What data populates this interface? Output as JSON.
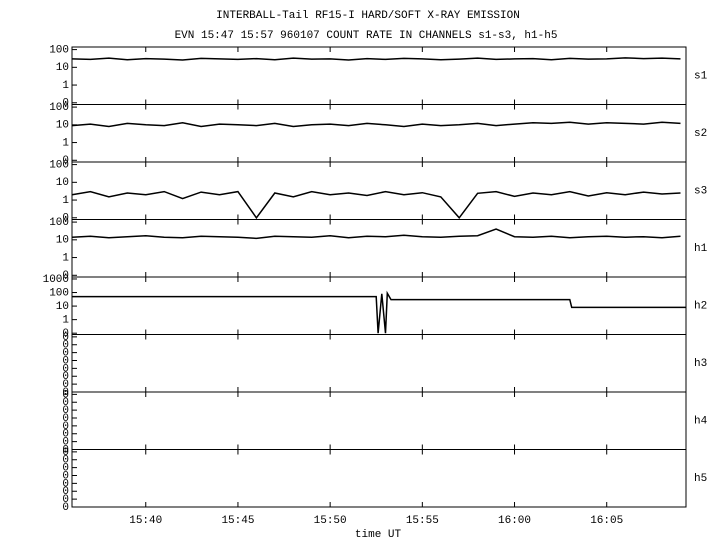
{
  "title": "INTERBALL-Tail RF15-I HARD/SOFT X-RAY EMISSION",
  "subtitle": "EVN 15:47 15:57 960107  COUNT RATE IN CHANNELS s1-s3, h1-h5",
  "xlabel": "time UT",
  "xlim": [
    936,
    969.3
  ],
  "xticks": [
    {
      "value": 940,
      "label": "15:40"
    },
    {
      "value": 945,
      "label": "15:45"
    },
    {
      "value": 950,
      "label": "15:50"
    },
    {
      "value": 955,
      "label": "15:55"
    },
    {
      "value": 960,
      "label": "16:00"
    },
    {
      "value": 965,
      "label": "16:05"
    }
  ],
  "times": [
    936,
    937,
    938,
    939,
    940,
    941,
    942,
    943,
    944,
    945,
    946,
    947,
    948,
    949,
    950,
    951,
    952,
    953,
    954,
    955,
    956,
    957,
    958,
    959,
    960,
    961,
    962,
    963,
    964,
    965,
    966,
    967,
    968,
    969
  ],
  "chart_data": [
    {
      "type": "line",
      "name": "s1",
      "log": true,
      "color": "#000000",
      "ylim": [
        0.08,
        140
      ],
      "yticks": [
        100,
        10,
        1,
        {
          "value": 0.1,
          "label": "0"
        }
      ],
      "values": [
        30,
        28,
        33,
        27,
        31,
        29,
        26,
        32,
        30,
        28,
        31,
        27,
        33,
        29,
        30,
        26,
        31,
        28,
        32,
        30,
        27,
        29,
        33,
        28,
        30,
        31,
        27,
        32,
        29,
        30,
        34,
        31,
        33,
        30
      ]
    },
    {
      "type": "line",
      "name": "s2",
      "log": true,
      "color": "#000000",
      "ylim": [
        0.08,
        140
      ],
      "yticks": [
        100,
        10,
        1,
        {
          "value": 0.1,
          "label": "0"
        }
      ],
      "values": [
        9,
        11,
        8,
        12,
        10,
        9,
        13,
        8,
        11,
        10,
        9,
        12,
        8,
        10,
        11,
        9,
        12,
        10,
        8,
        11,
        9,
        10,
        12,
        9,
        11,
        13,
        12,
        14,
        11,
        13,
        12,
        11,
        14,
        12
      ]
    },
    {
      "type": "line",
      "name": "s3",
      "log": true,
      "color": "#000000",
      "ylim": [
        0.08,
        140
      ],
      "yticks": [
        100,
        10,
        1,
        {
          "value": 0.1,
          "label": "0"
        }
      ],
      "values": [
        2,
        3,
        1.5,
        2.5,
        2,
        3,
        1.2,
        2.8,
        2,
        3,
        0.1,
        2.5,
        1.5,
        3,
        2,
        2.5,
        1.8,
        3,
        2,
        2.6,
        1.5,
        0.1,
        2.4,
        3,
        1.6,
        2.5,
        2,
        3,
        1.7,
        2.6,
        2,
        2.8,
        2.2,
        2.5
      ]
    },
    {
      "type": "line",
      "name": "h1",
      "log": true,
      "color": "#000000",
      "ylim": [
        0.08,
        140
      ],
      "yticks": [
        100,
        10,
        1,
        {
          "value": 0.1,
          "label": "0"
        }
      ],
      "values": [
        14,
        16,
        13,
        15,
        17,
        14,
        13,
        16,
        15,
        14,
        12,
        16,
        15,
        14,
        17,
        13,
        16,
        15,
        18,
        15,
        14,
        16,
        17,
        40,
        15,
        14,
        16,
        13,
        15,
        16,
        14,
        15,
        13,
        16
      ]
    },
    {
      "type": "line",
      "name": "h2",
      "log": true,
      "color": "#000000",
      "ylim": [
        0.08,
        1400
      ],
      "yticks": [
        1000,
        100,
        10,
        1,
        {
          "value": 0.1,
          "label": "0"
        }
      ],
      "x": [
        936,
        952.5,
        952.6,
        952.8,
        953.0,
        953.1,
        953.3,
        963,
        963.1,
        969.3
      ],
      "values": [
        50,
        50,
        0.1,
        80,
        0.1,
        90,
        30,
        30,
        8,
        8
      ]
    },
    {
      "type": "empty",
      "name": "h3",
      "ylim": [
        0,
        7.3
      ],
      "yticks": [
        {
          "value": 0,
          "label": "0"
        },
        {
          "value": 1,
          "label": "0"
        },
        {
          "value": 2,
          "label": "0"
        },
        {
          "value": 3,
          "label": "0"
        },
        {
          "value": 4,
          "label": "0"
        },
        {
          "value": 5,
          "label": "0"
        },
        {
          "value": 6,
          "label": "0"
        },
        {
          "value": 7,
          "label": "0"
        }
      ]
    },
    {
      "type": "empty",
      "name": "h4",
      "ylim": [
        0,
        7.3
      ],
      "yticks": [
        {
          "value": 0,
          "label": "0"
        },
        {
          "value": 1,
          "label": "0"
        },
        {
          "value": 2,
          "label": "0"
        },
        {
          "value": 3,
          "label": "0"
        },
        {
          "value": 4,
          "label": "0"
        },
        {
          "value": 5,
          "label": "0"
        },
        {
          "value": 6,
          "label": "0"
        },
        {
          "value": 7,
          "label": "0"
        }
      ]
    },
    {
      "type": "empty",
      "name": "h5",
      "ylim": [
        0,
        7.3
      ],
      "yticks": [
        {
          "value": 0,
          "label": "0"
        },
        {
          "value": 1,
          "label": "0"
        },
        {
          "value": 2,
          "label": "0"
        },
        {
          "value": 3,
          "label": "0"
        },
        {
          "value": 4,
          "label": "0"
        },
        {
          "value": 5,
          "label": "0"
        },
        {
          "value": 6,
          "label": "0"
        },
        {
          "value": 7,
          "label": "0"
        }
      ]
    }
  ]
}
